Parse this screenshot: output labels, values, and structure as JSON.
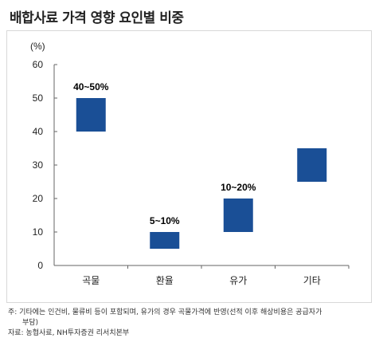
{
  "title": "배합사료 가격 영향 요인별 비중",
  "chart_data": {
    "type": "floating-bar",
    "ylabel": "(%)",
    "ylim": [
      0,
      60
    ],
    "yticks": [
      0,
      10,
      20,
      30,
      40,
      50,
      60
    ],
    "categories": [
      "곡물",
      "환율",
      "유가",
      "기타"
    ],
    "ranges": [
      [
        40,
        50
      ],
      [
        5,
        10
      ],
      [
        10,
        20
      ],
      [
        25,
        35
      ]
    ],
    "labels": [
      "40~50%",
      "5~10%",
      "10~20%",
      ""
    ],
    "bar_color": "#1a4f96",
    "grid": false
  },
  "notes": {
    "line1": "주: 기타에는 인건비, 물류비 등이 포함되며, 유가의 경우 곡물가격에 반영(선적 이후 해상비용은 공급자가",
    "line2": "부담)",
    "source": "자료: 농협사료, NH투자증권 리서치본부"
  }
}
